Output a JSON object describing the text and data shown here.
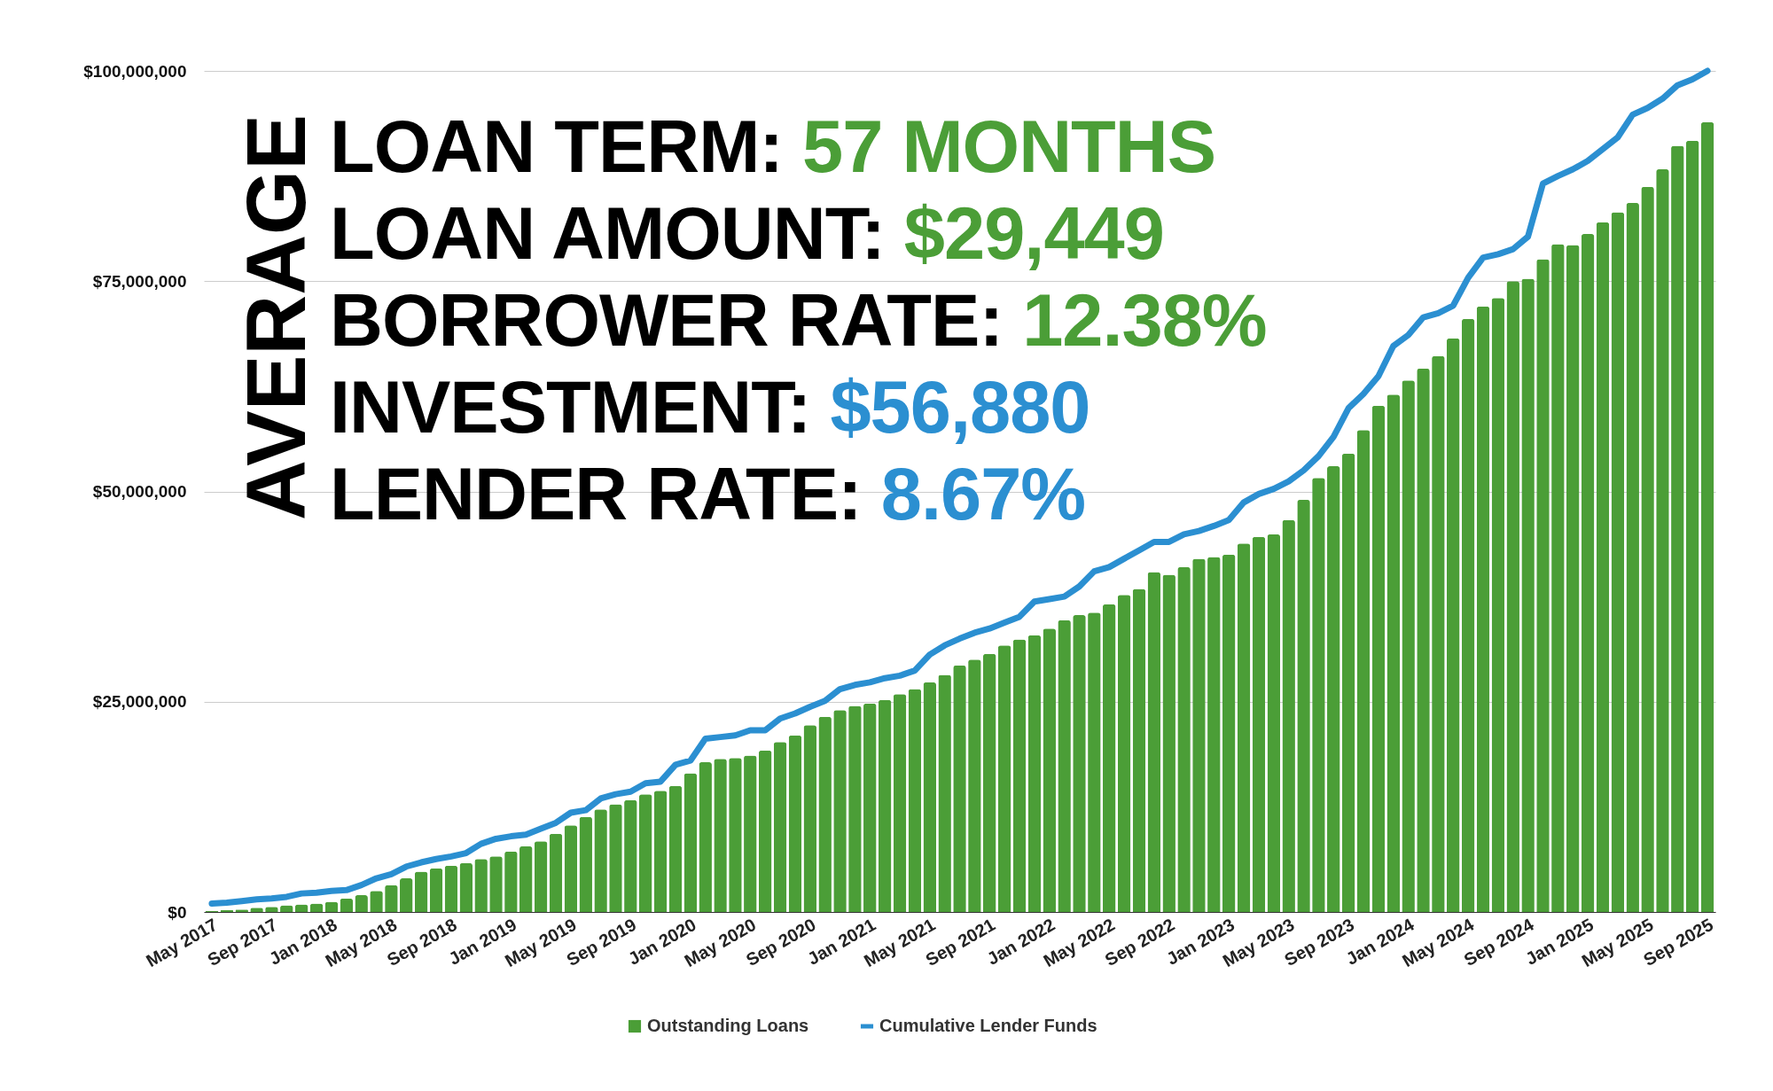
{
  "chart_data": {
    "type": "bar",
    "categories": [
      "May 2017",
      null,
      null,
      null,
      "Sep 2017",
      null,
      null,
      null,
      "Jan 2018",
      null,
      null,
      null,
      "May 2018",
      null,
      null,
      null,
      "Sep 2018",
      null,
      null,
      null,
      "Jan 2019",
      null,
      null,
      null,
      "May 2019",
      null,
      null,
      null,
      "Sep 2019",
      null,
      null,
      null,
      "Jan 2020",
      null,
      null,
      null,
      "May 2020",
      null,
      null,
      null,
      "Sep 2020",
      null,
      null,
      null,
      "Jan 2021",
      null,
      null,
      null,
      "May 2021",
      null,
      null,
      null,
      "Sep 2021",
      null,
      null,
      null,
      "Jan 2022",
      null,
      null,
      null,
      "May 2022",
      null,
      null,
      null,
      "Sep 2022",
      null,
      null,
      null,
      "Jan 2023",
      null,
      null,
      null,
      "May 2023",
      null,
      null,
      null,
      "Sep 2023",
      null,
      null,
      null,
      "Jan 2024",
      null,
      null,
      null,
      "May 2024",
      null,
      null,
      null,
      "Sep 2024",
      null,
      null,
      null,
      "Jan 2025",
      null,
      null,
      null,
      "May 2025",
      null,
      null,
      null,
      "Sep 2025"
    ],
    "series": [
      {
        "name": "Outstanding Loans",
        "color": "#4b9e37",
        "values": [
          100000,
          200000,
          300000,
          500000,
          600000,
          800000,
          900000,
          1000000,
          1200000,
          1600000,
          2000000,
          2500000,
          3200000,
          4000000,
          4800000,
          5200000,
          5500000,
          5800000,
          6300000,
          6600000,
          7200000,
          7800000,
          8400000,
          9300000,
          10300000,
          11300000,
          12200000,
          12800000,
          13300000,
          14000000,
          14400000,
          15000000,
          16500000,
          17800000,
          18200000,
          18300000,
          18600000,
          19200000,
          20200000,
          21000000,
          22200000,
          23200000,
          24000000,
          24500000,
          24800000,
          25200000,
          25900000,
          26500000,
          27300000,
          28200000,
          29300000,
          30000000,
          30700000,
          31700000,
          32400000,
          32900000,
          33700000,
          34700000,
          35300000,
          35600000,
          36600000,
          37700000,
          38400000,
          40400000,
          40100000,
          41000000,
          42000000,
          42200000,
          42500000,
          43800000,
          44600000,
          44900000,
          46600000,
          49000000,
          51600000,
          53000000,
          54500000,
          57300000,
          60200000,
          61500000,
          63200000,
          64600000,
          66100000,
          68200000,
          70500000,
          72000000,
          73000000,
          75000000,
          75300000,
          77600000,
          79400000,
          79300000,
          80600000,
          82000000,
          83200000,
          84300000,
          86200000,
          88300000,
          91100000,
          91700000,
          93900000
        ]
      },
      {
        "name": "Cumulative Lender Funds",
        "type": "line",
        "color": "#2b8fd1",
        "values": [
          1000000,
          1100000,
          1300000,
          1500000,
          1600000,
          1800000,
          2200000,
          2300000,
          2500000,
          2600000,
          3200000,
          4000000,
          4500000,
          5400000,
          5900000,
          6300000,
          6600000,
          7000000,
          8100000,
          8700000,
          9000000,
          9200000,
          9900000,
          10600000,
          11800000,
          12100000,
          13500000,
          14000000,
          14300000,
          15300000,
          15500000,
          17500000,
          18000000,
          20600000,
          20800000,
          21000000,
          21600000,
          21600000,
          23000000,
          23600000,
          24400000,
          25100000,
          26500000,
          27000000,
          27300000,
          27800000,
          28100000,
          28700000,
          30600000,
          31700000,
          32500000,
          33200000,
          33700000,
          34400000,
          35100000,
          36900000,
          37200000,
          37500000,
          38700000,
          40500000,
          41000000,
          42000000,
          43000000,
          44000000,
          44000000,
          44900000,
          45300000,
          45900000,
          46600000,
          48700000,
          49700000,
          50300000,
          51200000,
          52500000,
          54200000,
          56500000,
          59900000,
          61600000,
          63700000,
          67300000,
          68600000,
          70700000,
          71200000,
          72100000,
          75400000,
          77800000,
          78200000,
          78800000,
          80300000,
          86600000,
          87500000,
          88300000,
          89300000,
          90700000,
          92100000,
          94800000,
          95600000,
          96700000,
          98300000,
          99000000,
          100000000
        ]
      }
    ],
    "ylim": [
      0,
      100000000
    ],
    "yticks": [
      {
        "value": 0,
        "label": "$0"
      },
      {
        "value": 25000000,
        "label": "$25,000,000"
      },
      {
        "value": 50000000,
        "label": "$50,000,000"
      },
      {
        "value": 75000000,
        "label": "$75,000,000"
      },
      {
        "value": 100000000,
        "label": "$100,000,000"
      }
    ],
    "grid": "y",
    "legend": "bottom",
    "annotations": [
      "AVERAGE",
      "LOAN TERM:",
      "57 MONTHS",
      "LOAN AMOUNT:",
      "$29,449",
      "BORROWER RATE:",
      "12.38%",
      "INVESTMENT:",
      "$56,880",
      "LENDER RATE:",
      "8.67%"
    ]
  }
}
